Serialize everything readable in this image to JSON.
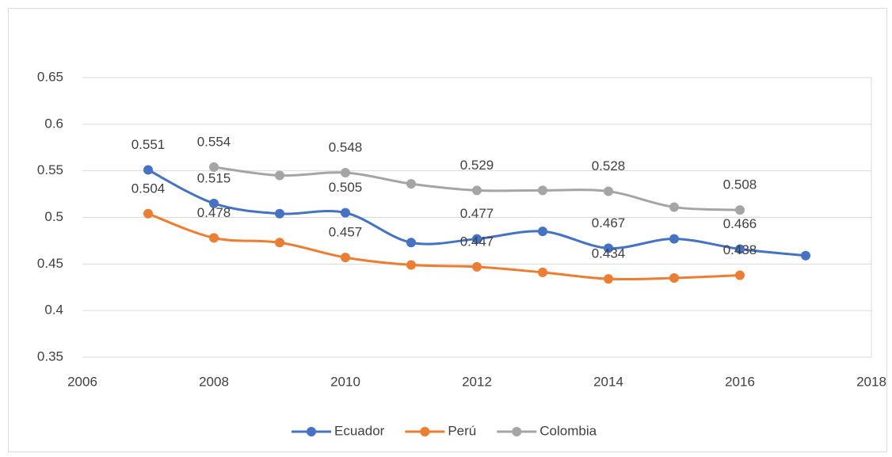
{
  "chart_data": {
    "type": "line",
    "xlim": [
      2006,
      2018
    ],
    "xticks": [
      2006,
      2008,
      2010,
      2012,
      2014,
      2016,
      2018
    ],
    "ylim": [
      0.35,
      0.65
    ],
    "yticks": [
      0.35,
      0.4,
      0.45,
      0.5,
      0.55,
      0.6,
      0.65
    ],
    "grid": true,
    "smooth": true,
    "legend": "bottom",
    "series": [
      {
        "name": "Ecuador",
        "color": "#4472c4",
        "x": [
          2007,
          2008,
          2009,
          2010,
          2011,
          2012,
          2013,
          2014,
          2015,
          2016,
          2017
        ],
        "values": [
          0.551,
          0.515,
          0.504,
          0.505,
          0.473,
          0.477,
          0.485,
          0.467,
          0.477,
          0.466,
          0.459
        ],
        "value_labels": [
          "0.551",
          "0.515",
          null,
          "0.505",
          null,
          "0.477",
          null,
          "0.467",
          null,
          "0.466",
          null
        ]
      },
      {
        "name": "Perú",
        "color": "#ed7d31",
        "x": [
          2007,
          2008,
          2009,
          2010,
          2011,
          2012,
          2013,
          2014,
          2015,
          2016
        ],
        "values": [
          0.504,
          0.478,
          0.473,
          0.457,
          0.449,
          0.447,
          0.441,
          0.434,
          0.435,
          0.438
        ],
        "value_labels": [
          "0.504",
          "0.478",
          null,
          "0.457",
          null,
          "0.447",
          null,
          "0.434",
          null,
          "0.438"
        ]
      },
      {
        "name": "Colombia",
        "color": "#a5a5a5",
        "x": [
          2008,
          2009,
          2010,
          2011,
          2012,
          2013,
          2014,
          2015,
          2016
        ],
        "values": [
          0.554,
          0.545,
          0.548,
          0.536,
          0.529,
          0.529,
          0.528,
          0.511,
          0.508
        ],
        "value_labels": [
          "0.554",
          null,
          "0.548",
          null,
          "0.529",
          null,
          "0.528",
          null,
          "0.508"
        ]
      }
    ]
  }
}
